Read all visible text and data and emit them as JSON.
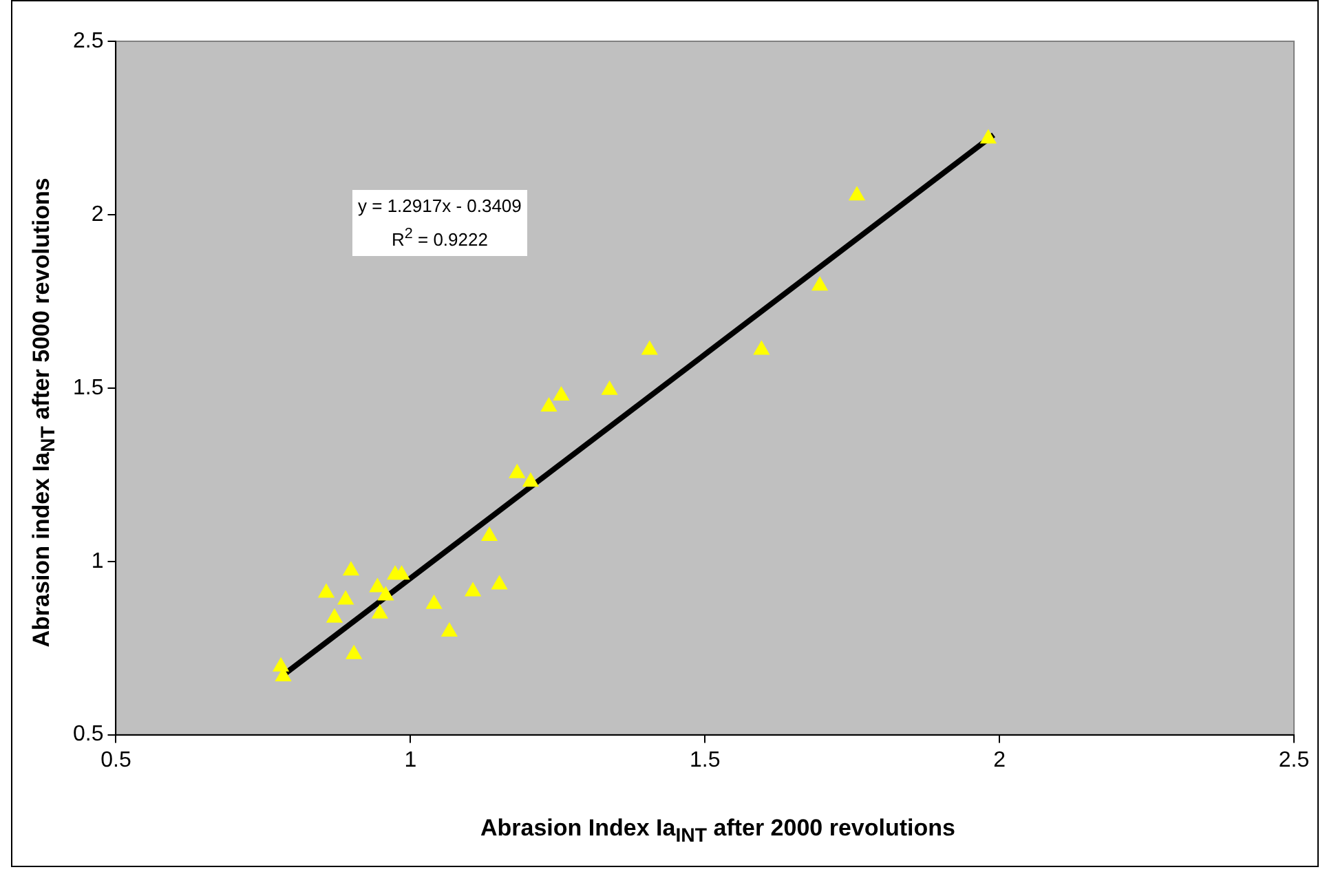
{
  "chart_data": {
    "type": "scatter",
    "xlabel": "Abrasion Index Ia$_{INT}$ after 2000 revolutions",
    "ylabel": "Abrasion index Ia$_{NT}$ after 5000 revolutions",
    "annotations": [
      "y = 1.2917x - 0.3409",
      "R$^{2}$ = 0.9222"
    ],
    "series": [
      {
        "color": "#ffff00",
        "marker": "triangle",
        "x": [
          0.78,
          0.784,
          0.899,
          0.857,
          0.89,
          0.871,
          0.944,
          0.974,
          0.985,
          0.958,
          0.948,
          0.904,
          1.04,
          1.066,
          1.106,
          1.151,
          1.134,
          1.406,
          1.596,
          1.256,
          1.235,
          1.338,
          1.181,
          1.204,
          1.981,
          1.758,
          1.695
        ],
        "values": [
          0.696,
          0.668,
          0.973,
          0.909,
          0.889,
          0.837,
          0.925,
          0.961,
          0.961,
          0.901,
          0.849,
          0.732,
          0.877,
          0.797,
          0.913,
          0.933,
          1.073,
          1.61,
          1.61,
          1.478,
          1.446,
          1.494,
          1.254,
          1.229,
          2.219,
          2.055,
          1.795
        ]
      },
      {
        "type": "line",
        "color": "#000000",
        "marker": "none",
        "x": [
          0.78,
          1.99
        ],
        "values": [
          0.667,
          2.23
        ]
      }
    ],
    "xlim": [
      0.5,
      2.5
    ],
    "xticks": [
      0.5,
      1,
      1.5,
      2,
      2.5
    ],
    "ylim": [
      0.5,
      2.5
    ],
    "yticks": [
      0.5,
      1,
      1.5,
      2,
      2.5
    ],
    "grid": false,
    "legend": false
  }
}
